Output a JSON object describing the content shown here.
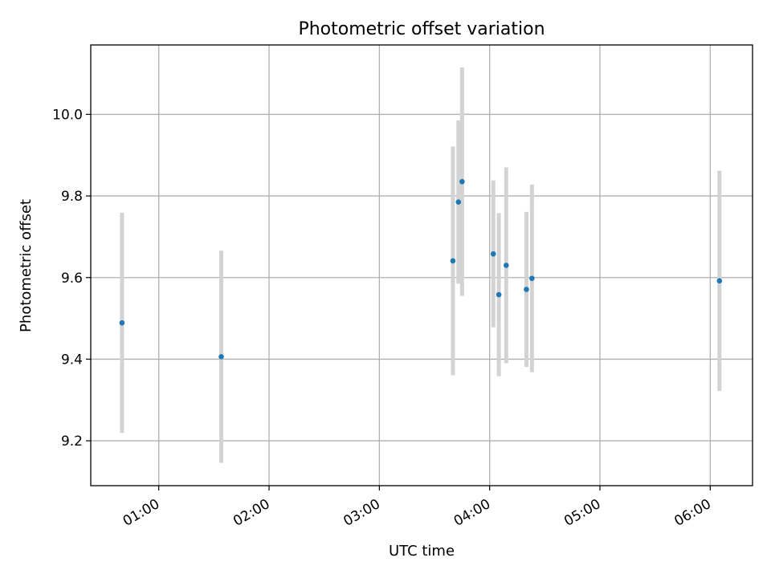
{
  "chart_data": {
    "type": "scatter",
    "title": "Photometric offset variation",
    "xlabel": "UTC time",
    "ylabel": "Photometric offset",
    "x_axis_type": "time",
    "xlim": [
      "00:23",
      "06:23"
    ],
    "ylim": [
      9.09,
      10.17
    ],
    "x_ticks": [
      "01:00",
      "02:00",
      "03:00",
      "04:00",
      "05:00",
      "06:00"
    ],
    "y_ticks": [
      9.2,
      9.4,
      9.6,
      9.8,
      10.0
    ],
    "y_tick_labels": [
      "9.2",
      "9.4",
      "9.6",
      "9.8",
      "10.0"
    ],
    "grid": true,
    "colors": {
      "points": "#1f77b4",
      "error_bars": "#d3d3d3",
      "grid": "#b0b0b0"
    },
    "points": [
      {
        "x": "00:40",
        "y": 9.489,
        "err": 0.27
      },
      {
        "x": "01:34",
        "y": 9.406,
        "err": 0.26
      },
      {
        "x": "03:40",
        "y": 9.641,
        "err": 0.28
      },
      {
        "x": "03:43",
        "y": 9.785,
        "err": 0.2
      },
      {
        "x": "03:45",
        "y": 9.835,
        "err": 0.28
      },
      {
        "x": "04:02",
        "y": 9.658,
        "err": 0.18
      },
      {
        "x": "04:05",
        "y": 9.558,
        "err": 0.2
      },
      {
        "x": "04:09",
        "y": 9.63,
        "err": 0.24
      },
      {
        "x": "04:20",
        "y": 9.571,
        "err": 0.19
      },
      {
        "x": "04:23",
        "y": 9.598,
        "err": 0.23
      },
      {
        "x": "06:05",
        "y": 9.592,
        "err": 0.27
      }
    ]
  }
}
